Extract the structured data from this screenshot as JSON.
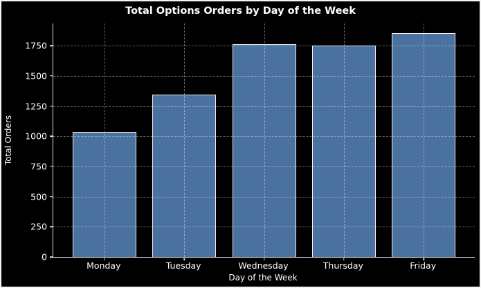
{
  "chart_data": {
    "type": "bar",
    "title": "Total Options Orders by Day of the Week",
    "xlabel": "Day of the Week",
    "ylabel": "Total Orders",
    "categories": [
      "Monday",
      "Tuesday",
      "Wednesday",
      "Thursday",
      "Friday"
    ],
    "values": [
      1035,
      1345,
      1765,
      1750,
      1855
    ],
    "yticks": [
      0,
      250,
      500,
      750,
      1000,
      1250,
      1500,
      1750
    ],
    "ylim": [
      0,
      1935
    ],
    "grid": "dashed, drawn over bars, both axes",
    "legend_position": "none",
    "colors": {
      "background": "#000000",
      "bar_fill": "#4a719f",
      "bar_edge": "#f2f2f2",
      "grid_line": "rgba(255,255,255,0.40)",
      "axis_spine": "#e6e6e6",
      "text": "#ffffff",
      "figure_border": "#f5f5f5"
    }
  }
}
